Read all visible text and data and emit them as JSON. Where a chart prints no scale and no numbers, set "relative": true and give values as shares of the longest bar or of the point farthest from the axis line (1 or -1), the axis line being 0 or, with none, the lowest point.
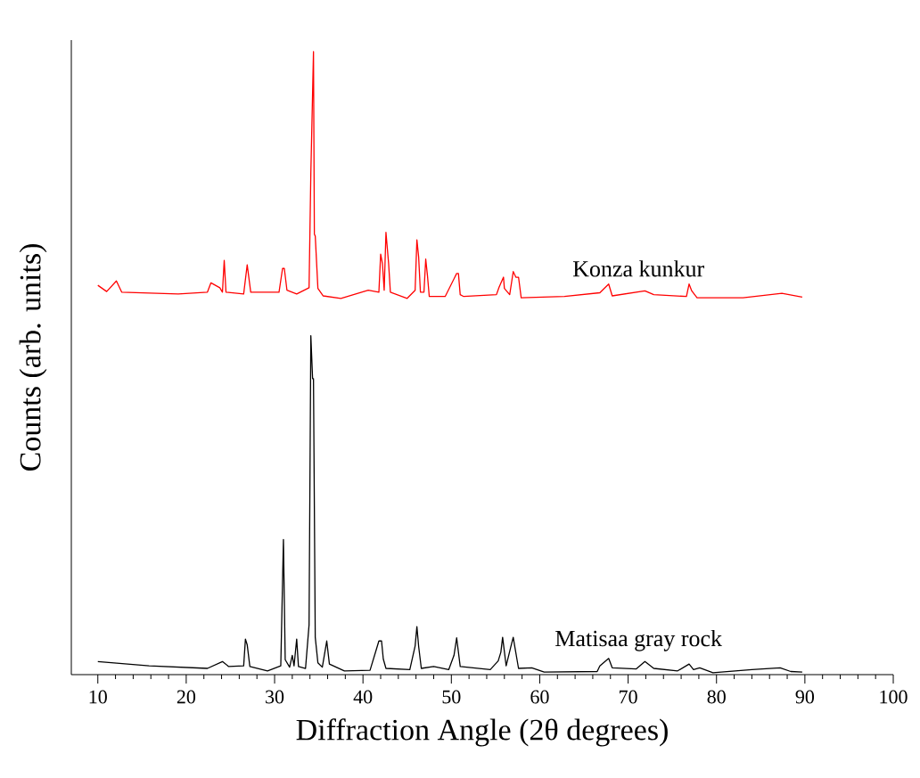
{
  "chart_data": {
    "type": "line",
    "relative": true,
    "xlabel": "Diffraction Angle (2θ degrees)",
    "ylabel": "Counts (arb. units)",
    "xlim": [
      7,
      100
    ],
    "xticks": [
      10,
      20,
      30,
      40,
      50,
      60,
      70,
      80,
      90,
      100
    ],
    "series": [
      {
        "name": "Konza kunkur",
        "color": "#ff0000",
        "x": [
          10,
          11.0,
          12.1,
          12.7,
          19.1,
          22.4,
          22.8,
          23.8,
          24.1,
          24.3,
          24.5,
          26.5,
          26.9,
          27.3,
          30.5,
          30.9,
          31.1,
          31.4,
          32.5,
          33.9,
          34.1,
          34.4,
          34.5,
          34.6,
          34.9,
          35.5,
          37.5,
          40.6,
          41.8,
          42.0,
          42.2,
          42.4,
          42.6,
          42.9,
          43.1,
          45.0,
          45.9,
          46.1,
          46.3,
          46.5,
          46.9,
          47.1,
          47.3,
          47.5,
          49.3,
          50.6,
          50.8,
          51.0,
          51.4,
          55.1,
          55.4,
          55.9,
          56.0,
          56.6,
          57.0,
          57.3,
          57.6,
          57.9,
          62.8,
          66.8,
          67.8,
          68.2,
          71.9,
          72.9,
          76.6,
          76.9,
          77.2,
          77.8,
          83.0,
          87.4,
          89.7
        ],
        "values": [
          0.625,
          0.615,
          0.632,
          0.614,
          0.611,
          0.614,
          0.629,
          0.621,
          0.614,
          0.665,
          0.614,
          0.611,
          0.658,
          0.614,
          0.614,
          0.652,
          0.652,
          0.617,
          0.611,
          0.621,
          0.804,
          1.0,
          0.707,
          0.704,
          0.62,
          0.608,
          0.604,
          0.617,
          0.614,
          0.675,
          0.66,
          0.617,
          0.71,
          0.66,
          0.614,
          0.604,
          0.617,
          0.698,
          0.67,
          0.614,
          0.614,
          0.667,
          0.64,
          0.607,
          0.607,
          0.644,
          0.644,
          0.61,
          0.607,
          0.61,
          0.622,
          0.638,
          0.62,
          0.61,
          0.647,
          0.638,
          0.638,
          0.605,
          0.607,
          0.613,
          0.627,
          0.608,
          0.616,
          0.61,
          0.607,
          0.627,
          0.616,
          0.605,
          0.605,
          0.612,
          0.606
        ]
      },
      {
        "name": "Matisaa gray rock",
        "color": "#000000",
        "x": [
          10,
          15.8,
          22.4,
          24.1,
          24.8,
          26.5,
          26.7,
          26.9,
          27.2,
          29.2,
          30.7,
          31.0,
          31.2,
          31.7,
          32.0,
          32.2,
          32.5,
          32.7,
          33.5,
          33.9,
          34.1,
          34.3,
          34.4,
          34.6,
          34.9,
          35.4,
          35.7,
          35.9,
          36.2,
          37.9,
          40.8,
          41.8,
          42.1,
          42.3,
          42.6,
          45.3,
          45.9,
          46.1,
          46.3,
          46.6,
          48.0,
          49.7,
          50.3,
          50.6,
          51.0,
          54.4,
          55.3,
          55.6,
          55.8,
          56.2,
          56.7,
          57.0,
          57.2,
          57.6,
          59.1,
          60.5,
          66.5,
          66.8,
          67.8,
          68.2,
          70.9,
          71.9,
          72.9,
          75.6,
          76.9,
          77.4,
          78.1,
          79.6,
          84.0,
          87.2,
          88.4,
          89.7
        ],
        "values": [
          0.021,
          0.014,
          0.01,
          0.021,
          0.013,
          0.014,
          0.057,
          0.048,
          0.013,
          0.006,
          0.014,
          0.217,
          0.024,
          0.012,
          0.031,
          0.014,
          0.057,
          0.013,
          0.01,
          0.08,
          0.544,
          0.475,
          0.475,
          0.06,
          0.019,
          0.012,
          0.037,
          0.054,
          0.017,
          0.006,
          0.007,
          0.054,
          0.054,
          0.025,
          0.01,
          0.008,
          0.046,
          0.077,
          0.045,
          0.01,
          0.013,
          0.008,
          0.031,
          0.059,
          0.013,
          0.008,
          0.022,
          0.036,
          0.06,
          0.014,
          0.043,
          0.06,
          0.043,
          0.01,
          0.011,
          0.004,
          0.005,
          0.014,
          0.026,
          0.011,
          0.009,
          0.021,
          0.01,
          0.006,
          0.017,
          0.008,
          0.011,
          0.003,
          0.008,
          0.011,
          0.005,
          0.004
        ]
      }
    ]
  }
}
